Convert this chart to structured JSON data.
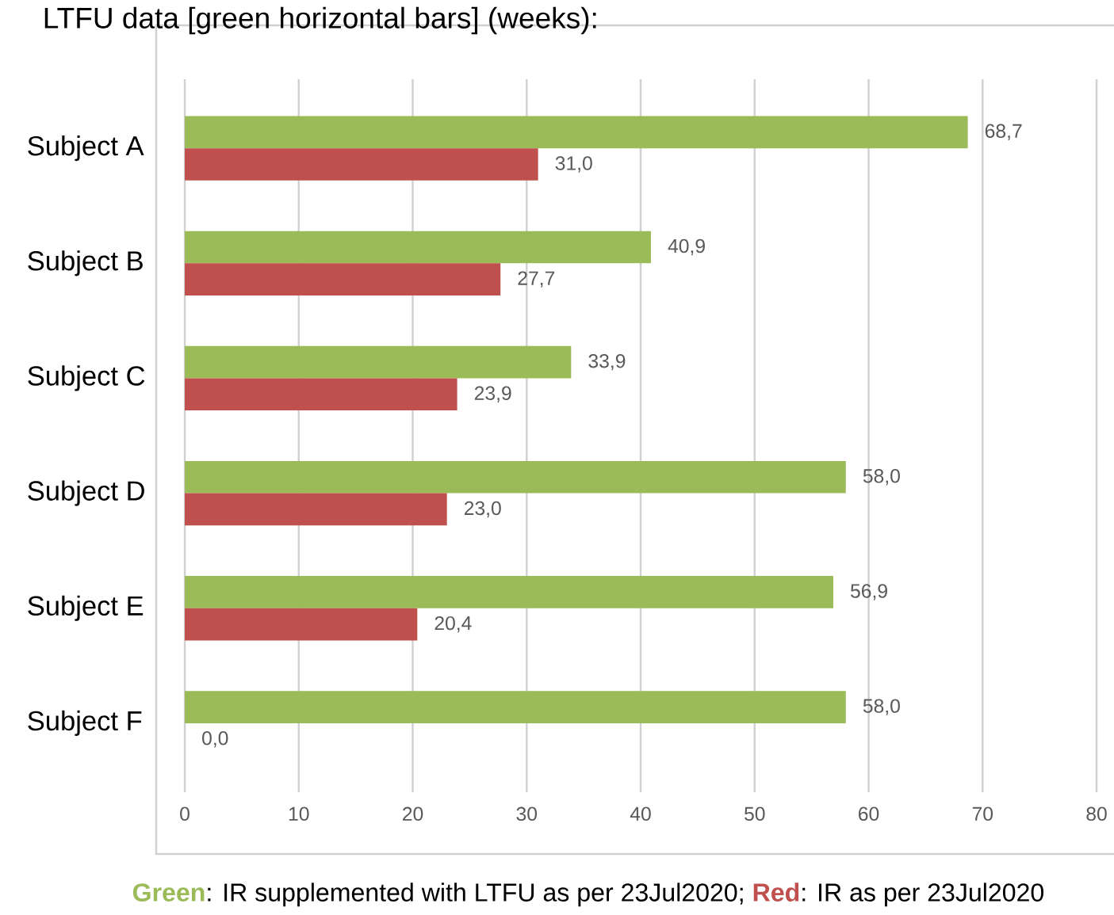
{
  "chart_data": {
    "type": "bar",
    "orientation": "horizontal",
    "title": "LTFU data [green horizontal bars] (weeks):",
    "categories": [
      "Subject A",
      "Subject B",
      "Subject C",
      "Subject D",
      "Subject E",
      "Subject F"
    ],
    "series": [
      {
        "color": "#9bbb59",
        "values": [
          68.7,
          40.9,
          33.9,
          58.0,
          56.9,
          58.0
        ],
        "value_labels": [
          "68,7",
          "40,9",
          "33,9",
          "58,0",
          "56,9",
          "58,0"
        ]
      },
      {
        "color": "#c0504d",
        "values": [
          31.0,
          27.7,
          23.9,
          23.0,
          20.4,
          0.0
        ],
        "value_labels": [
          "31,0",
          "27,7",
          "23,9",
          "23,0",
          "20,4",
          "0,0"
        ]
      }
    ],
    "xlim": [
      0,
      80
    ],
    "xticks": [
      0,
      10,
      20,
      30,
      40,
      50,
      60,
      70,
      80
    ],
    "grid": "x",
    "annotations": [
      "Green",
      ": IR supplemented with LTFU as per 23Jul2020; ",
      "Red",
      ": IR as per 23Jul2020"
    ]
  }
}
